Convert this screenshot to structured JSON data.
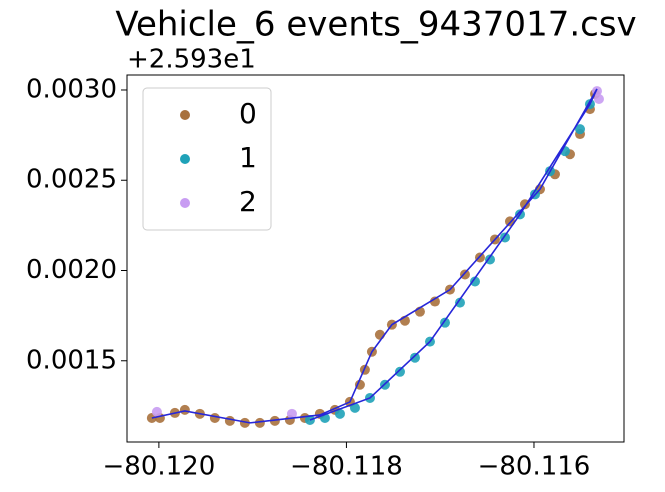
{
  "chart_data": {
    "type": "scatter",
    "title": "Vehicle_6 events_9437017.csv",
    "offset_label": "+2.593e1",
    "xlim": [
      -80.12034,
      -80.11504
    ],
    "ylim": [
      0.00105,
      0.003083
    ],
    "xticks": [
      {
        "value": -80.12,
        "label": "−80.120"
      },
      {
        "value": -80.118,
        "label": "−80.118"
      },
      {
        "value": -80.116,
        "label": "−80.116"
      }
    ],
    "yticks": [
      {
        "value": 0.0015,
        "label": "0.0015"
      },
      {
        "value": 0.002,
        "label": "0.0020"
      },
      {
        "value": 0.0025,
        "label": "0.0025"
      },
      {
        "value": 0.003,
        "label": "0.0030"
      }
    ],
    "legend": "upper left",
    "series": [
      {
        "name": "0",
        "color": "#a8713d",
        "x": [
          -80.120075,
          -80.119989,
          -80.119829,
          -80.119723,
          -80.119563,
          -80.119403,
          -80.119243,
          -80.119083,
          -80.118923,
          -80.118763,
          -80.118603,
          -80.118443,
          -80.118283,
          -80.118123,
          -80.117963,
          -80.117856,
          -80.117803,
          -80.117728,
          -80.117643,
          -80.117515,
          -80.117376,
          -80.117216,
          -80.117056,
          -80.116896,
          -80.116736,
          -80.116576,
          -80.116416,
          -80.116256,
          -80.116096,
          -80.115936,
          -80.115776,
          -80.115616,
          -80.115509,
          -80.115403,
          -80.115349
        ],
        "values": [
          0.001183,
          0.001183,
          0.001211,
          0.001228,
          0.001206,
          0.001183,
          0.001167,
          0.001156,
          0.001156,
          0.001167,
          0.001172,
          0.001183,
          0.001206,
          0.001228,
          0.001272,
          0.001367,
          0.00145,
          0.00155,
          0.001644,
          0.0017,
          0.001722,
          0.001772,
          0.001828,
          0.001894,
          0.001978,
          0.002072,
          0.002172,
          0.002272,
          0.002367,
          0.00245,
          0.002533,
          0.002644,
          0.002756,
          0.002894,
          0.002978
        ]
      },
      {
        "name": "1",
        "color": "#1fa2b8",
        "x": [
          -80.118389,
          -80.118229,
          -80.118069,
          -80.117909,
          -80.117749,
          -80.117589,
          -80.117429,
          -80.117269,
          -80.117109,
          -80.116949,
          -80.116789,
          -80.116629,
          -80.116469,
          -80.116309,
          -80.116149,
          -80.115989,
          -80.115829,
          -80.115669,
          -80.115509,
          -80.115403
        ],
        "values": [
          0.001172,
          0.001183,
          0.001206,
          0.001239,
          0.001294,
          0.001367,
          0.001439,
          0.001517,
          0.001606,
          0.001711,
          0.001822,
          0.001939,
          0.002061,
          0.002183,
          0.002311,
          0.002422,
          0.00255,
          0.002661,
          0.002783,
          0.002922
        ]
      },
      {
        "name": "2",
        "color": "#c89cf2",
        "x": [
          -80.120021,
          -80.118581,
          -80.115328,
          -80.115307
        ],
        "values": [
          0.001217,
          0.001206,
          0.002994,
          0.00295
        ]
      }
    ],
    "trend": {
      "color": "#2626d9",
      "x": [
        -80.120075,
        -80.119723,
        -80.119029,
        -80.118283,
        -80.117963,
        -80.117728,
        -80.117515,
        -80.116896,
        -80.115936,
        -80.115328,
        -80.115403,
        -80.116149,
        -80.117109,
        -80.117749,
        -80.118389
      ],
      "values": [
        0.001183,
        0.001222,
        0.001156,
        0.0012,
        0.001272,
        0.00155,
        0.0017,
        0.001894,
        0.00245,
        0.003006,
        0.002922,
        0.002311,
        0.001606,
        0.001294,
        0.001172
      ]
    }
  }
}
